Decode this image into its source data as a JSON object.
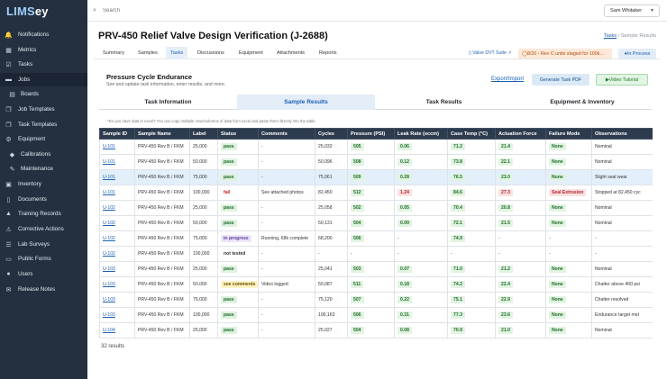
{
  "app": {
    "logo_part1": "LIMS",
    "logo_part2": "ey"
  },
  "sidebar": {
    "items": [
      {
        "label": "Notifications",
        "icon": "bell-icon",
        "glyph": "🔔"
      },
      {
        "label": "Metrics",
        "icon": "chart-icon",
        "glyph": "▦"
      },
      {
        "label": "Tasks",
        "icon": "tasks-icon",
        "glyph": "☑"
      },
      {
        "label": "Jobs",
        "icon": "briefcase-icon",
        "glyph": "▬"
      },
      {
        "label": "Boards",
        "icon": "board-icon",
        "glyph": "▤"
      },
      {
        "label": "Job Templates",
        "icon": "template-icon",
        "glyph": "❐"
      },
      {
        "label": "Task Templates",
        "icon": "template-icon",
        "glyph": "❐"
      },
      {
        "label": "Equipment",
        "icon": "wrench-icon",
        "glyph": "⚙"
      },
      {
        "label": "Calibrations",
        "icon": "tag-icon",
        "glyph": "◆"
      },
      {
        "label": "Maintenance",
        "icon": "tool-icon",
        "glyph": "✎"
      },
      {
        "label": "Inventory",
        "icon": "box-icon",
        "glyph": "▣"
      },
      {
        "label": "Documents",
        "icon": "document-icon",
        "glyph": "▯"
      },
      {
        "label": "Training Records",
        "icon": "graduation-icon",
        "glyph": "▲"
      },
      {
        "label": "Corrective Actions",
        "icon": "warning-icon",
        "glyph": "⚠"
      },
      {
        "label": "Lab Surveys",
        "icon": "survey-icon",
        "glyph": "☰"
      },
      {
        "label": "Public Forms",
        "icon": "form-icon",
        "glyph": "▭"
      },
      {
        "label": "Users",
        "icon": "users-icon",
        "glyph": "●"
      },
      {
        "label": "Release Notes",
        "icon": "note-icon",
        "glyph": "✉"
      }
    ]
  },
  "topbar": {
    "search_placeholder": "Search",
    "user_name": "Sam Whitaker"
  },
  "page": {
    "title": "PRV-450 Relief Valve Design Verification (J-2688)",
    "breadcrumb_link": "Tasks",
    "breadcrumb_sep": "/",
    "breadcrumb_current": "Sample Results"
  },
  "tabs": [
    "Summary",
    "Samples",
    "Tasks",
    "Discussions",
    "Equipment",
    "Attachments",
    "Reports"
  ],
  "header_right": {
    "docs_link": "Valve DVT Suite",
    "warning": "8/20 - Rev C units staged for 100k...",
    "status": "In Process"
  },
  "panel": {
    "title": "Pressure Cycle Endurance",
    "subtitle": "See and update task information, enter results, and more.",
    "export_label": "Export/Import",
    "pdf_label": "Generate Task PDF",
    "video_label": "Video Tutorial",
    "subtabs": [
      "Task Information",
      "Sample Results",
      "Task Results",
      "Equipment & Inventory"
    ],
    "note": "*Do you have data in excel? You can copy multiple rows/columns of data from excel and paste them directly into the table."
  },
  "table": {
    "columns": [
      "Sample ID",
      "Sample Name",
      "Label",
      "Status",
      "Comments",
      "Cycles",
      "Pressure (PSI)",
      "Leak Rate (sccm)",
      "Case Temp (°C)",
      "Actuation Force",
      "Failure Mode",
      "Observations"
    ],
    "rows": [
      {
        "id": "U-101",
        "name": "PRV-450 Rev B / FKM",
        "label": "25,000",
        "status": "pass",
        "comments": "-",
        "cycles": "25,032",
        "pressure": "505",
        "leak": "0.06",
        "temp": "71.2",
        "force": "21.4",
        "failure": "None",
        "obs": "Nominal"
      },
      {
        "id": "U-101",
        "name": "PRV-450 Rev B / FKM",
        "label": "50,000",
        "status": "pass",
        "comments": "-",
        "cycles": "50,096",
        "pressure": "508",
        "leak": "0.12",
        "temp": "73.8",
        "force": "22.1",
        "failure": "None",
        "obs": "Nominal"
      },
      {
        "id": "U-101",
        "name": "PRV-450 Rev B / FKM",
        "label": "75,000",
        "status": "pass",
        "comments": "-",
        "cycles": "75,061",
        "pressure": "509",
        "leak": "0.28",
        "temp": "76.5",
        "force": "23.0",
        "failure": "None",
        "obs": "Slight seal wear"
      },
      {
        "id": "U-101",
        "name": "PRV-450 Rev B / FKM",
        "label": "100,000",
        "status": "fail",
        "comments": "See attached photos",
        "cycles": "82,450",
        "pressure": "512",
        "leak": "1.24",
        "temp": "84.6",
        "force": "27.3",
        "failure": "Seal Extrusion",
        "obs": "Stopped at 82,450 cyc"
      },
      {
        "id": "U-102",
        "name": "PRV-450 Rev B / FKM",
        "label": "25,000",
        "status": "pass",
        "comments": "-",
        "cycles": "25,058",
        "pressure": "502",
        "leak": "0.05",
        "temp": "70.4",
        "force": "20.8",
        "failure": "None",
        "obs": "Nominal"
      },
      {
        "id": "U-102",
        "name": "PRV-450 Rev B / FKM",
        "label": "50,000",
        "status": "pass",
        "comments": "-",
        "cycles": "50,131",
        "pressure": "504",
        "leak": "0.09",
        "temp": "72.1",
        "force": "21.5",
        "failure": "None",
        "obs": "Nominal"
      },
      {
        "id": "U-102",
        "name": "PRV-450 Rev B / FKM",
        "label": "75,000",
        "status": "in progress",
        "comments": "Running, 68k complete",
        "cycles": "68,200",
        "pressure": "506",
        "leak": "-",
        "temp": "74.9",
        "force": "-",
        "failure": "-",
        "obs": "-"
      },
      {
        "id": "U-102",
        "name": "PRV-450 Rev B / FKM",
        "label": "100,000",
        "status": "not tested",
        "comments": "-",
        "cycles": "-",
        "pressure": "-",
        "leak": "-",
        "temp": "-",
        "force": "-",
        "failure": "-",
        "obs": "-"
      },
      {
        "id": "U-103",
        "name": "PRV-450 Rev B / FKM",
        "label": "25,000",
        "status": "pass",
        "comments": "-",
        "cycles": "25,041",
        "pressure": "503",
        "leak": "0.07",
        "temp": "71.0",
        "force": "21.2",
        "failure": "None",
        "obs": "Nominal"
      },
      {
        "id": "U-103",
        "name": "PRV-450 Rev B / FKM",
        "label": "50,000",
        "status": "see comments",
        "comments": "Video logged",
        "cycles": "50,087",
        "pressure": "511",
        "leak": "0.18",
        "temp": "74.2",
        "force": "22.4",
        "failure": "None",
        "obs": "Chatter above 400 psi"
      },
      {
        "id": "U-103",
        "name": "PRV-450 Rev B / FKM",
        "label": "75,000",
        "status": "pass",
        "comments": "-",
        "cycles": "75,120",
        "pressure": "507",
        "leak": "0.22",
        "temp": "75.1",
        "force": "22.9",
        "failure": "None",
        "obs": "Chatter resolved"
      },
      {
        "id": "U-103",
        "name": "PRV-450 Rev B / FKM",
        "label": "100,000",
        "status": "pass",
        "comments": "-",
        "cycles": "100,163",
        "pressure": "506",
        "leak": "0.31",
        "temp": "77.3",
        "force": "23.6",
        "failure": "None",
        "obs": "Endurance target met"
      },
      {
        "id": "U-104",
        "name": "PRV-450 Rev B / FKM",
        "label": "25,000",
        "status": "pass",
        "comments": "-",
        "cycles": "25,027",
        "pressure": "504",
        "leak": "0.08",
        "temp": "70.9",
        "force": "21.0",
        "failure": "None",
        "obs": "Nominal"
      }
    ]
  },
  "footer": {
    "count": "32 results"
  }
}
